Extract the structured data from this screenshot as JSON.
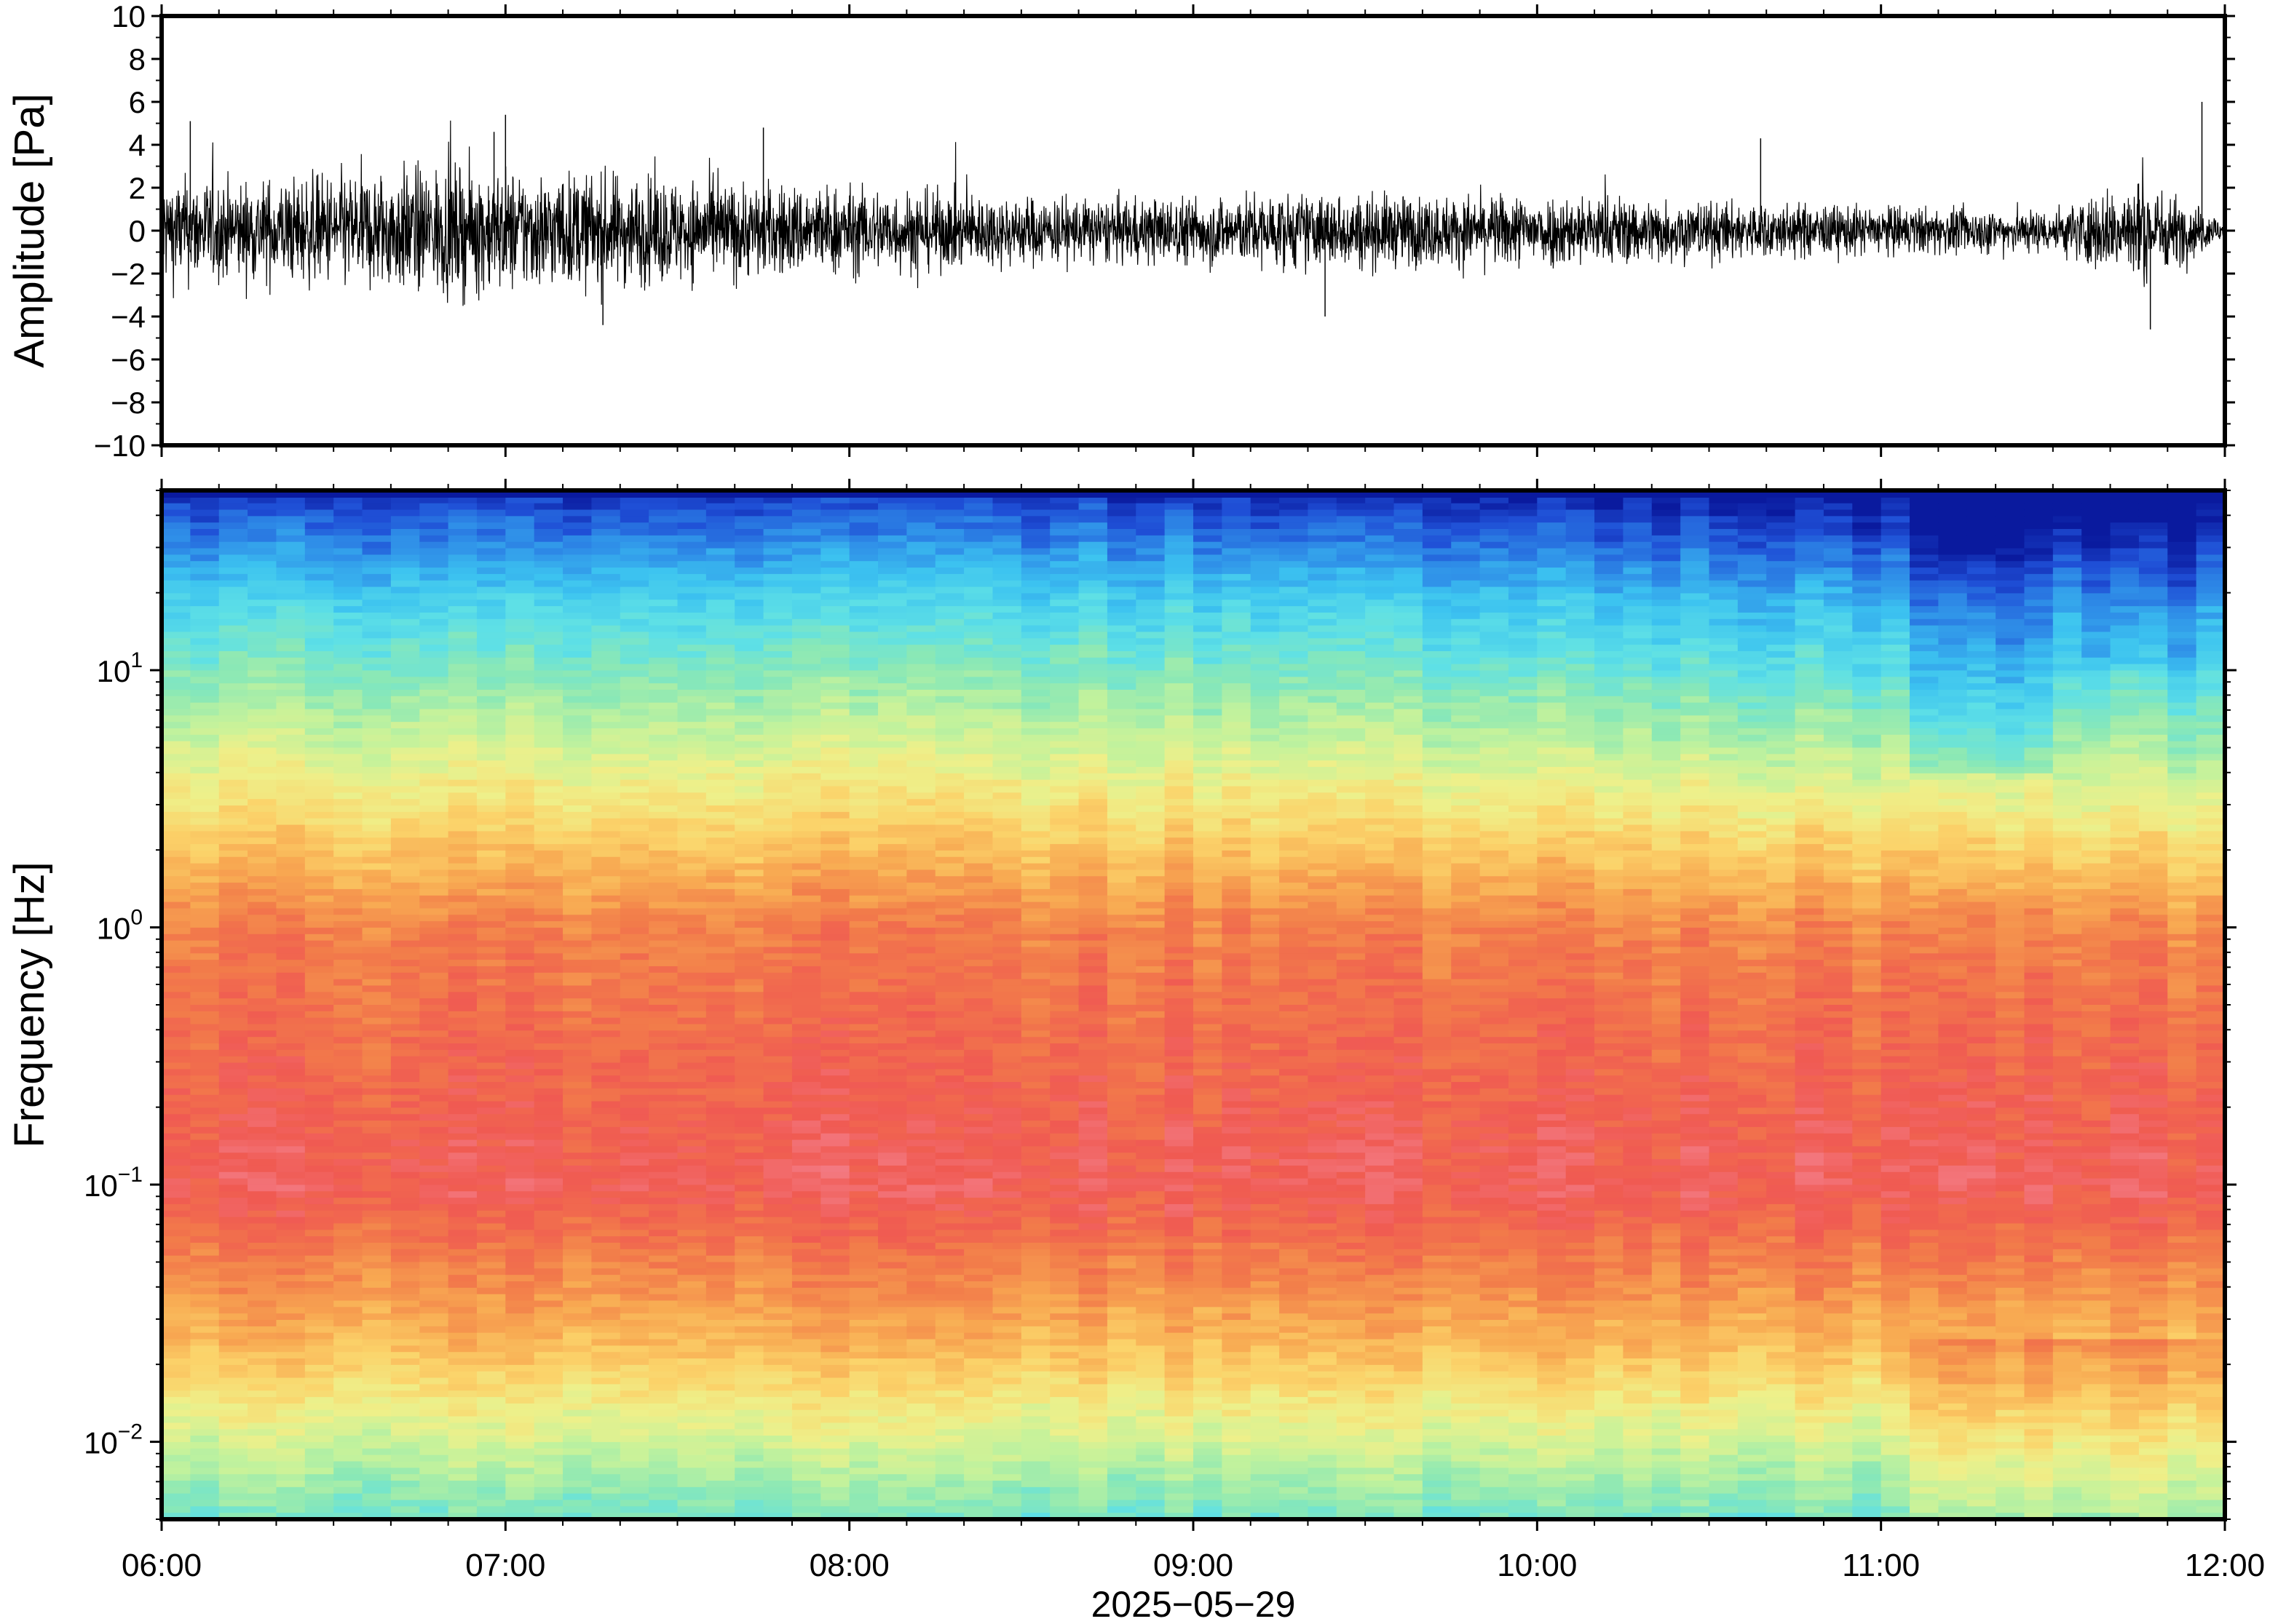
{
  "chart_data": [
    {
      "type": "line",
      "panel": "waveform",
      "ylabel": "Amplitude [Pa]",
      "ylim": [
        -10,
        10
      ],
      "yticks": [
        10,
        8,
        6,
        4,
        2,
        0,
        -2,
        -4,
        -6,
        -8,
        -10
      ],
      "ytick_labels": [
        "10",
        "8",
        "6",
        "4",
        "2",
        "0",
        "−2",
        "−4",
        "−6",
        "−8",
        "−10"
      ],
      "xlim": [
        "06:00",
        "12:00"
      ],
      "line_color": "#000000",
      "envelope": {
        "x": [
          "06:00",
          "06:15",
          "06:30",
          "06:45",
          "07:00",
          "07:15",
          "07:30",
          "07:45",
          "08:00",
          "08:15",
          "08:30",
          "08:45",
          "09:00",
          "09:15",
          "09:30",
          "09:45",
          "10:00",
          "10:15",
          "10:30",
          "10:45",
          "11:00",
          "11:15",
          "11:30",
          "11:45",
          "12:00"
        ],
        "upper": [
          2.2,
          2.0,
          2.3,
          2.6,
          2.5,
          2.3,
          2.1,
          1.9,
          1.8,
          1.6,
          1.4,
          1.3,
          1.4,
          1.5,
          1.5,
          1.4,
          1.5,
          1.4,
          1.2,
          1.1,
          1.0,
          0.9,
          0.9,
          1.8,
          0.5
        ],
        "lower": [
          -2.2,
          -2.0,
          -2.3,
          -2.6,
          -2.5,
          -2.3,
          -2.1,
          -1.9,
          -1.8,
          -1.6,
          -1.4,
          -1.3,
          -1.4,
          -1.5,
          -1.5,
          -1.4,
          -1.5,
          -1.4,
          -1.2,
          -1.1,
          -1.0,
          -0.9,
          -0.9,
          -2.4,
          -0.5
        ]
      },
      "peaks": [
        {
          "x": "06:05",
          "y": 5.1
        },
        {
          "x": "06:58",
          "y": 4.6
        },
        {
          "x": "07:00",
          "y": 5.4
        },
        {
          "x": "07:17",
          "y": -4.4
        },
        {
          "x": "07:45",
          "y": 4.8
        },
        {
          "x": "09:23",
          "y": -4.0
        },
        {
          "x": "10:39",
          "y": 4.3
        },
        {
          "x": "11:47",
          "y": -4.6
        },
        {
          "x": "11:56",
          "y": 6.0
        }
      ]
    },
    {
      "type": "heatmap",
      "panel": "spectrogram",
      "ylabel": "Frequency [Hz]",
      "yscale": "log",
      "ylim": [
        0.005,
        50
      ],
      "yticks": [
        0.01,
        0.1,
        1,
        10
      ],
      "ytick_base": "10",
      "ytick_exponents": [
        "−2",
        "−1",
        "0",
        "1"
      ],
      "xlabel": "2025−05−29",
      "xlim": [
        "06:00",
        "12:00"
      ],
      "xticks": [
        "06:00",
        "07:00",
        "08:00",
        "09:00",
        "10:00",
        "11:00",
        "12:00"
      ],
      "colormap": [
        "#0a1a9e",
        "#1f4fd6",
        "#2f8fe8",
        "#3cc3f0",
        "#5ee0e6",
        "#8ae8b6",
        "#c3f29c",
        "#eef08a",
        "#fbd36a",
        "#f8aa52",
        "#f27c4a",
        "#f05a52",
        "#f47f8a"
      ],
      "time_columns": 72,
      "freq_rows": 160
    }
  ]
}
